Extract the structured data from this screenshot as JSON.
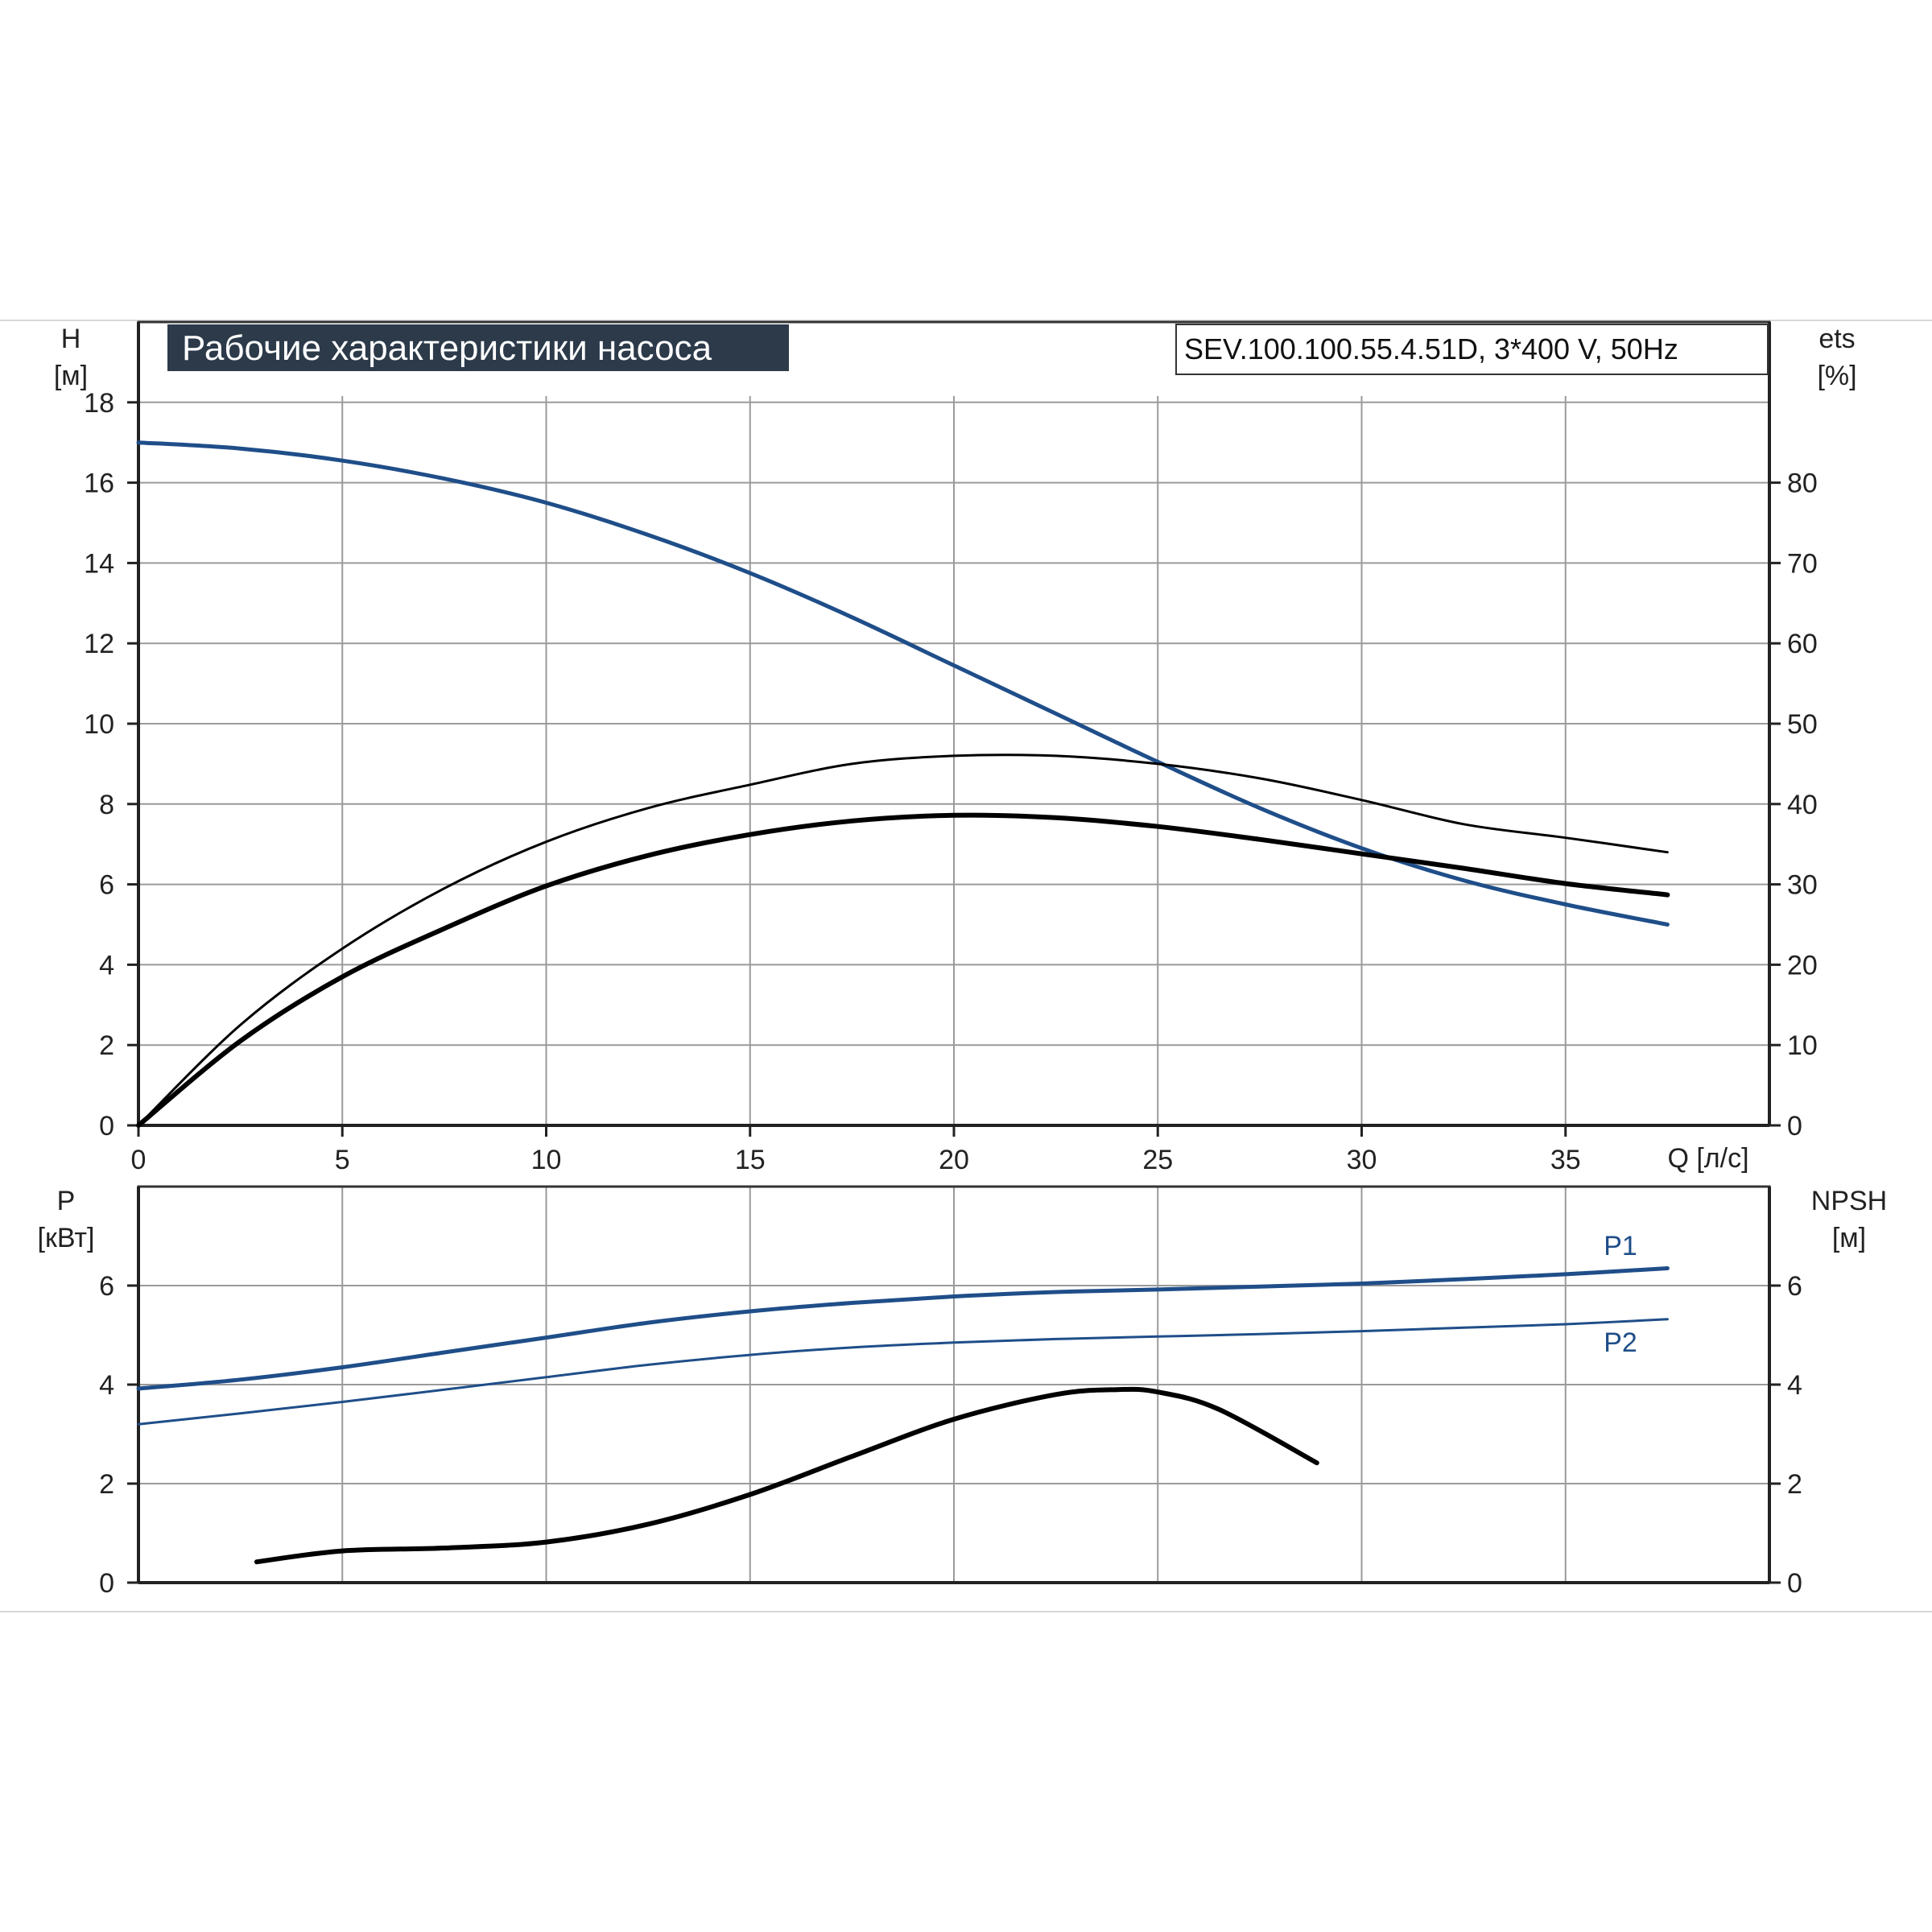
{
  "title": "Рабочие характеристики насоса",
  "model": "SEV.100.100.55.4.51D, 3*400 V, 50Hz",
  "colors": {
    "blue": "#1f4e89",
    "black": "#000000",
    "title_bg": "#2c3a4a",
    "title_text": "#ffffff",
    "grid": "#9a9a9a"
  },
  "chart_data": [
    {
      "id": "performance",
      "type": "line",
      "y_label": [
        "H",
        "[м]"
      ],
      "y2_label": [
        "ets",
        "[%]"
      ],
      "x_label": "Q [л/с]",
      "x_ticks": [
        0,
        5,
        10,
        15,
        20,
        25,
        30,
        35
      ],
      "xlim": [
        0,
        40
      ],
      "ylim": [
        0,
        20
      ],
      "y_ticks": [
        0,
        2,
        4,
        6,
        8,
        10,
        12,
        14,
        16,
        18
      ],
      "y2lim": [
        0,
        100
      ],
      "y2_ticks": [
        0,
        10,
        20,
        30,
        40,
        50,
        60,
        70,
        80
      ],
      "grid": true,
      "series": [
        {
          "key": "head",
          "axis": "left",
          "color": "blue",
          "width": 5,
          "x": [
            0,
            2.5,
            5,
            7.5,
            10,
            12.5,
            15,
            17.5,
            20,
            22.5,
            25,
            27.5,
            30,
            32.5,
            35,
            37.5
          ],
          "y": [
            17.0,
            16.85,
            16.55,
            16.1,
            15.5,
            14.7,
            13.75,
            12.65,
            11.45,
            10.25,
            9.05,
            7.9,
            6.9,
            6.1,
            5.5,
            5.0
          ]
        },
        {
          "key": "eta_upper",
          "axis": "right",
          "color": "black",
          "width": 3,
          "x": [
            0,
            2.5,
            5,
            7.5,
            10,
            12.5,
            15,
            17.5,
            20,
            22.5,
            25,
            27.5,
            30,
            32.5,
            35,
            37.5
          ],
          "y": [
            0,
            12.5,
            22.0,
            29.5,
            35.3,
            39.5,
            42.4,
            45.0,
            46.0,
            46.0,
            45.0,
            43.2,
            40.5,
            37.5,
            35.8,
            34.0
          ]
        },
        {
          "key": "eta_lower",
          "axis": "right",
          "color": "black",
          "width": 6,
          "x": [
            0,
            2.5,
            5,
            7.5,
            10,
            12.5,
            15,
            17.5,
            20,
            22.5,
            25,
            27.5,
            30,
            32.5,
            35,
            37.5
          ],
          "y": [
            0,
            10.5,
            18.5,
            24.5,
            29.8,
            33.6,
            36.2,
            37.9,
            38.6,
            38.3,
            37.2,
            35.6,
            33.8,
            32.0,
            30.1,
            28.7
          ]
        }
      ]
    },
    {
      "id": "power",
      "type": "line",
      "y_label": [
        "P",
        "[кВт]"
      ],
      "y2_label": [
        "NPSH",
        "[м]"
      ],
      "xlim": [
        0,
        40
      ],
      "ylim": [
        0,
        8
      ],
      "y_ticks": [
        0,
        2,
        4,
        6
      ],
      "y2lim": [
        0,
        8
      ],
      "y2_ticks": [
        0,
        2,
        4,
        6
      ],
      "grid": true,
      "series": [
        {
          "key": "p1",
          "name": "P1",
          "axis": "left",
          "color": "blue",
          "width": 5,
          "x": [
            0,
            2.5,
            5,
            7.5,
            10,
            12.5,
            15,
            17.5,
            20,
            22.5,
            25,
            27.5,
            30,
            32.5,
            35,
            37.5
          ],
          "y": [
            3.92,
            4.1,
            4.35,
            4.65,
            4.95,
            5.25,
            5.48,
            5.65,
            5.78,
            5.87,
            5.92,
            5.98,
            6.04,
            6.13,
            6.23,
            6.35
          ]
        },
        {
          "key": "p2",
          "name": "P2",
          "axis": "left",
          "color": "blue",
          "width": 3,
          "x": [
            0,
            2.5,
            5,
            7.5,
            10,
            12.5,
            15,
            17.5,
            20,
            22.5,
            25,
            27.5,
            30,
            32.5,
            35,
            37.5
          ],
          "y": [
            3.2,
            3.42,
            3.65,
            3.9,
            4.15,
            4.4,
            4.6,
            4.75,
            4.85,
            4.92,
            4.97,
            5.02,
            5.08,
            5.15,
            5.22,
            5.32
          ]
        },
        {
          "key": "npsh",
          "axis": "right",
          "color": "black",
          "width": 6,
          "x": [
            2.9,
            5,
            7.5,
            10,
            12.5,
            15,
            17.5,
            20,
            22.5,
            24,
            25,
            26.5,
            28.9
          ],
          "y": [
            0.42,
            0.64,
            0.7,
            0.82,
            1.18,
            1.78,
            2.55,
            3.3,
            3.8,
            3.9,
            3.85,
            3.5,
            2.42
          ]
        }
      ]
    }
  ]
}
